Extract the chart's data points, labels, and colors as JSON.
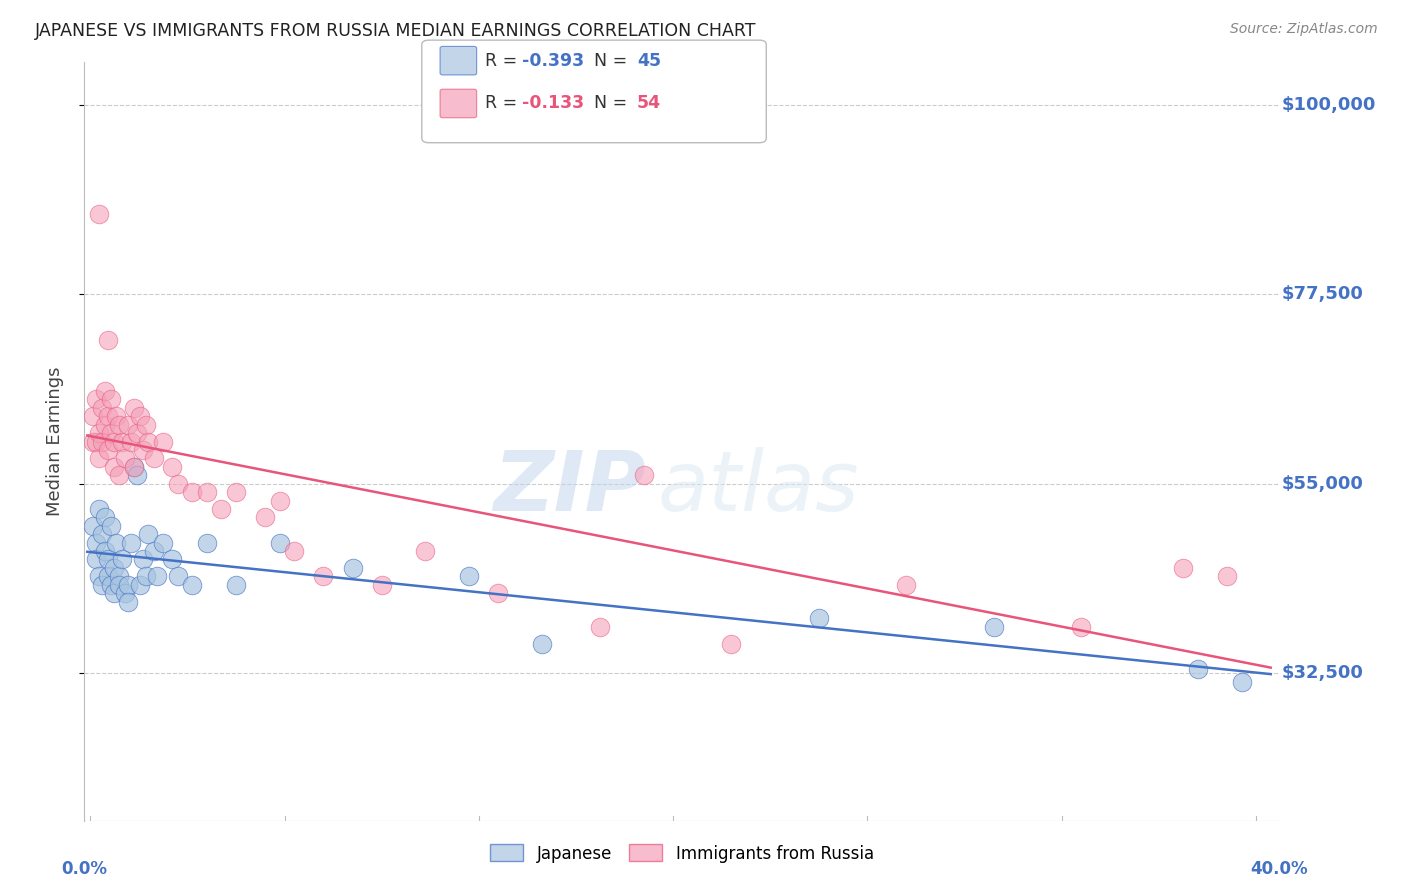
{
  "title": "JAPANESE VS IMMIGRANTS FROM RUSSIA MEDIAN EARNINGS CORRELATION CHART",
  "source": "Source: ZipAtlas.com",
  "ylabel": "Median Earnings",
  "ytick_labels": [
    "$32,500",
    "$55,000",
    "$77,500",
    "$100,000"
  ],
  "ytick_values": [
    32500,
    55000,
    77500,
    100000
  ],
  "ymin": 15000,
  "ymax": 105000,
  "xmin": -0.002,
  "xmax": 0.408,
  "blue_color": "#A8C4E0",
  "pink_color": "#F4A0B8",
  "blue_line_color": "#4472C4",
  "pink_line_color": "#E8557A",
  "grid_color": "#CCCCCC",
  "axis_label_color": "#4472C4",
  "title_color": "#222222",
  "watermark_color": "#C8D8EC",
  "legend_r_blue": "-0.393",
  "legend_n_blue": "45",
  "legend_r_pink": "-0.133",
  "legend_n_pink": "54",
  "japanese_x": [
    0.001,
    0.002,
    0.002,
    0.003,
    0.003,
    0.004,
    0.004,
    0.005,
    0.005,
    0.006,
    0.006,
    0.007,
    0.007,
    0.008,
    0.008,
    0.009,
    0.01,
    0.01,
    0.011,
    0.012,
    0.013,
    0.013,
    0.014,
    0.015,
    0.016,
    0.017,
    0.018,
    0.019,
    0.02,
    0.022,
    0.023,
    0.025,
    0.028,
    0.03,
    0.035,
    0.04,
    0.05,
    0.065,
    0.09,
    0.13,
    0.155,
    0.25,
    0.31,
    0.38,
    0.395
  ],
  "japanese_y": [
    50000,
    48000,
    46000,
    52000,
    44000,
    49000,
    43000,
    47000,
    51000,
    46000,
    44000,
    50000,
    43000,
    45000,
    42000,
    48000,
    44000,
    43000,
    46000,
    42000,
    43000,
    41000,
    48000,
    57000,
    56000,
    43000,
    46000,
    44000,
    49000,
    47000,
    44000,
    48000,
    46000,
    44000,
    43000,
    48000,
    43000,
    48000,
    45000,
    44000,
    36000,
    39000,
    38000,
    33000,
    31500
  ],
  "russia_x": [
    0.001,
    0.001,
    0.002,
    0.002,
    0.003,
    0.003,
    0.004,
    0.004,
    0.005,
    0.005,
    0.006,
    0.006,
    0.007,
    0.007,
    0.008,
    0.008,
    0.009,
    0.01,
    0.01,
    0.011,
    0.012,
    0.013,
    0.014,
    0.015,
    0.015,
    0.016,
    0.017,
    0.018,
    0.019,
    0.02,
    0.022,
    0.025,
    0.028,
    0.03,
    0.035,
    0.04,
    0.045,
    0.05,
    0.06,
    0.065,
    0.07,
    0.08,
    0.1,
    0.115,
    0.14,
    0.175,
    0.22,
    0.28,
    0.34,
    0.375,
    0.003,
    0.006,
    0.19,
    0.39
  ],
  "russia_y": [
    63000,
    60000,
    60000,
    65000,
    61000,
    58000,
    64000,
    60000,
    62000,
    66000,
    59000,
    63000,
    61000,
    65000,
    60000,
    57000,
    63000,
    56000,
    62000,
    60000,
    58000,
    62000,
    60000,
    64000,
    57000,
    61000,
    63000,
    59000,
    62000,
    60000,
    58000,
    60000,
    57000,
    55000,
    54000,
    54000,
    52000,
    54000,
    51000,
    53000,
    47000,
    44000,
    43000,
    47000,
    42000,
    38000,
    36000,
    43000,
    38000,
    45000,
    87000,
    72000,
    56000,
    44000
  ]
}
